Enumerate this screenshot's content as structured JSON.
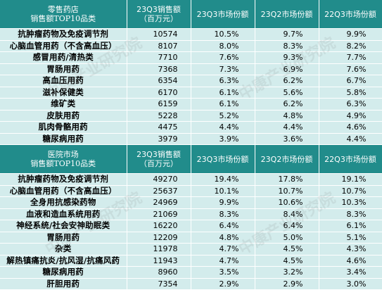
{
  "watermark": "中康产业研究院",
  "sections": [
    {
      "title_line1": "零售药店",
      "title_line2": "销售额TOP10品类",
      "col_sales_line1": "23Q3销售额",
      "col_sales_line2": "（百万元）",
      "col_share1": "23Q3市场份额",
      "col_share2": "23Q2市场份额",
      "col_share3": "22Q3市场份额",
      "rows": [
        {
          "category": "抗肿瘤药物及免疫调节剂",
          "sales": "10574",
          "s1": "10.5%",
          "s2": "9.7%",
          "s3": "9.9%"
        },
        {
          "category": "心脑血管用药（不含高血压）",
          "sales": "8107",
          "s1": "8.0%",
          "s2": "8.3%",
          "s3": "8.2%"
        },
        {
          "category": "感冒用药/清热类",
          "sales": "7710",
          "s1": "7.6%",
          "s2": "9.3%",
          "s3": "7.7%"
        },
        {
          "category": "胃肠用药",
          "sales": "7368",
          "s1": "7.3%",
          "s2": "6.9%",
          "s3": "7.6%"
        },
        {
          "category": "高血压用药",
          "sales": "6354",
          "s1": "6.3%",
          "s2": "6.2%",
          "s3": "6.7%"
        },
        {
          "category": "滋补保健类",
          "sales": "6170",
          "s1": "6.1%",
          "s2": "5.6%",
          "s3": "5.8%"
        },
        {
          "category": "维矿类",
          "sales": "6159",
          "s1": "6.1%",
          "s2": "6.2%",
          "s3": "6.3%"
        },
        {
          "category": "皮肤用药",
          "sales": "5228",
          "s1": "5.2%",
          "s2": "4.8%",
          "s3": "4.9%"
        },
        {
          "category": "肌肉骨骼用药",
          "sales": "4475",
          "s1": "4.4%",
          "s2": "4.4%",
          "s3": "4.6%"
        },
        {
          "category": "糖尿病用药",
          "sales": "3979",
          "s1": "3.9%",
          "s2": "3.6%",
          "s3": "4.4%"
        }
      ]
    },
    {
      "title_line1": "医院市场",
      "title_line2": "销售额TOP10品类",
      "col_sales_line1": "23Q3销售额",
      "col_sales_line2": "（百万元）",
      "col_share1": "23Q3市场份额",
      "col_share2": "23Q2市场份额",
      "col_share3": "22Q3市场份额",
      "rows": [
        {
          "category": "抗肿瘤药物及免疫调节剂",
          "sales": "49270",
          "s1": "19.4%",
          "s2": "17.8%",
          "s3": "19.1%"
        },
        {
          "category": "心脑血管用药（不含高血压）",
          "sales": "25637",
          "s1": "10.1%",
          "s2": "10.7%",
          "s3": "10.7%"
        },
        {
          "category": "全身用抗感染药物",
          "sales": "24969",
          "s1": "9.9%",
          "s2": "10.6%",
          "s3": "10.3%"
        },
        {
          "category": "血液和造血系统用药",
          "sales": "21069",
          "s1": "8.3%",
          "s2": "8.4%",
          "s3": "8.3%"
        },
        {
          "category": "神经系统/社会安神助眠类",
          "sales": "16220",
          "s1": "6.4%",
          "s2": "6.4%",
          "s3": "6.1%"
        },
        {
          "category": "胃肠用药",
          "sales": "12209",
          "s1": "4.8%",
          "s2": "5.0%",
          "s3": "5.1%"
        },
        {
          "category": "杂类",
          "sales": "11978",
          "s1": "4.7%",
          "s2": "4.5%",
          "s3": "4.3%"
        },
        {
          "category": "解热镇痛抗炎/抗风湿/抗痛风药",
          "sales": "11943",
          "s1": "4.7%",
          "s2": "4.5%",
          "s3": "4.6%"
        },
        {
          "category": "糖尿病用药",
          "sales": "8960",
          "s1": "3.5%",
          "s2": "3.2%",
          "s3": "3.4%"
        },
        {
          "category": "肝胆用药",
          "sales": "7354",
          "s1": "2.9%",
          "s2": "2.9%",
          "s3": "3.0%"
        }
      ]
    }
  ]
}
